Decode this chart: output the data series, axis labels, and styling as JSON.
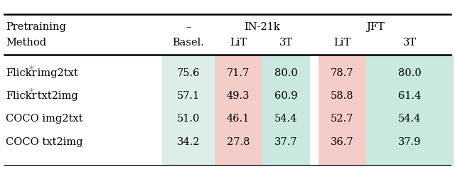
{
  "rows": [
    {
      "label": "Flickr* img2txt",
      "flickr_star": true,
      "values": [
        "75.6",
        "71.7",
        "80.0",
        "78.7",
        "80.0"
      ]
    },
    {
      "label": "Flickr* txt2img",
      "flickr_star": true,
      "values": [
        "57.1",
        "49.3",
        "60.9",
        "58.8",
        "61.4"
      ]
    },
    {
      "label": "COCO img2txt",
      "flickr_star": false,
      "values": [
        "51.0",
        "46.1",
        "54.4",
        "52.7",
        "54.4"
      ]
    },
    {
      "label": "COCO txt2img",
      "flickr_star": false,
      "values": [
        "34.2",
        "27.8",
        "37.7",
        "36.7",
        "37.9"
      ]
    }
  ],
  "cell_colors": {
    "basel": "#ddeee8",
    "lit": "#f5cdc8",
    "threeT": "#c8e8e0"
  },
  "star_color": "#2aaa8a",
  "fig_bg": "#ffffff",
  "line_color": "#000000",
  "font_size": 10.5
}
